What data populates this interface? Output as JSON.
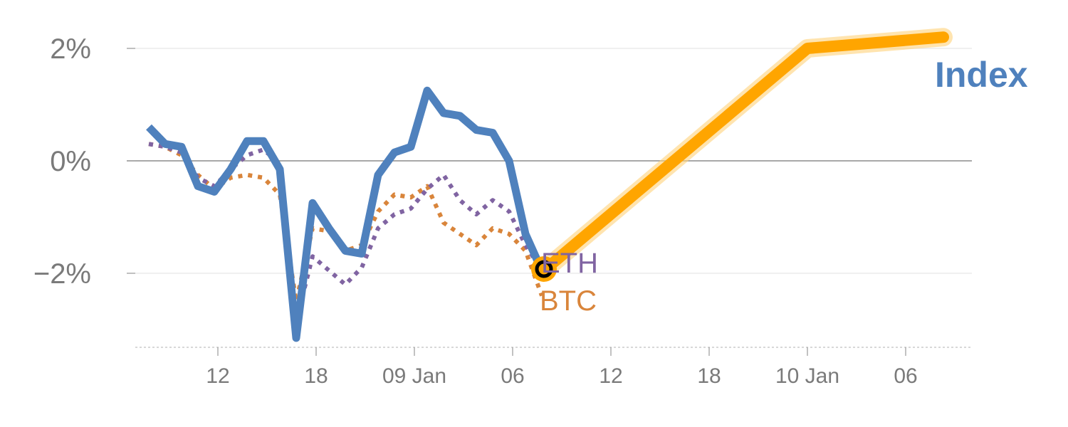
{
  "chart_data": {
    "type": "line",
    "title": "",
    "xlabel": "",
    "ylabel": "",
    "x_ticks": [
      "12",
      "18",
      "09 Jan",
      "06",
      "12",
      "18",
      "10 Jan",
      "06"
    ],
    "y_ticks": [
      {
        "value": 2,
        "label": "2%"
      },
      {
        "value": 0,
        "label": "0%"
      },
      {
        "value": -2,
        "label": "−2%"
      }
    ],
    "ylim": [
      -3.3,
      2.6
    ],
    "grid": true,
    "zero_line": true,
    "series": [
      {
        "name": "Index",
        "style": "solid",
        "color": "#4f81bd",
        "values": [
          0.6,
          0.3,
          0.25,
          -0.45,
          -0.55,
          -0.15,
          0.35,
          0.35,
          -0.15,
          -3.15,
          -0.75,
          -1.2,
          -1.6,
          -1.65,
          -0.25,
          0.15,
          0.25,
          1.25,
          0.85,
          0.8,
          0.55,
          0.5,
          0.0,
          -1.3,
          -1.95
        ]
      },
      {
        "name": "ETH",
        "style": "dotted",
        "color": "#8064a2",
        "values": [
          0.3,
          0.25,
          0.15,
          -0.3,
          -0.45,
          -0.15,
          0.1,
          0.2,
          -0.05,
          -2.85,
          -1.7,
          -1.95,
          -2.2,
          -1.9,
          -1.2,
          -0.95,
          -0.85,
          -0.5,
          -0.25,
          -0.7,
          -0.95,
          -0.7,
          -0.9,
          -1.5,
          -1.95
        ]
      },
      {
        "name": "BTC",
        "style": "dotted",
        "color": "#d9853b",
        "values": [
          0.3,
          0.25,
          0.1,
          -0.25,
          -0.5,
          -0.3,
          -0.25,
          -0.3,
          -0.6,
          -2.5,
          -1.2,
          -1.25,
          -1.6,
          -1.5,
          -0.9,
          -0.6,
          -0.65,
          -0.45,
          -1.1,
          -1.3,
          -1.5,
          -1.2,
          -1.3,
          -1.6,
          -2.4
        ]
      },
      {
        "name": "",
        "style": "projection",
        "color": "#ffa500",
        "values": [
          -1.95,
          2.0,
          2.2
        ]
      }
    ],
    "end_marker": {
      "value": -1.95,
      "color": "#ffa500"
    }
  },
  "labels": {
    "index": "Index",
    "eth": "ETH",
    "btc": "BTC"
  }
}
